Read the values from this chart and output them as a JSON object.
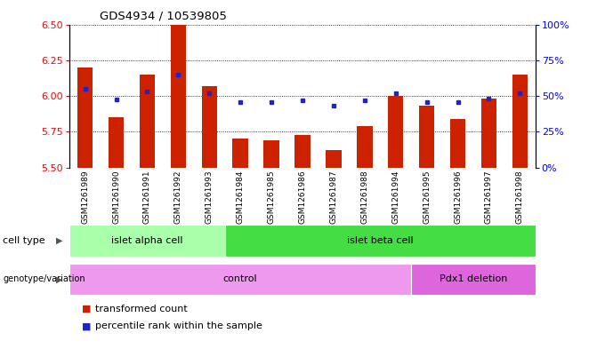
{
  "title": "GDS4934 / 10539805",
  "samples": [
    "GSM1261989",
    "GSM1261990",
    "GSM1261991",
    "GSM1261992",
    "GSM1261993",
    "GSM1261984",
    "GSM1261985",
    "GSM1261986",
    "GSM1261987",
    "GSM1261988",
    "GSM1261994",
    "GSM1261995",
    "GSM1261996",
    "GSM1261997",
    "GSM1261998"
  ],
  "bar_values": [
    6.2,
    5.85,
    6.15,
    6.5,
    6.07,
    5.7,
    5.69,
    5.73,
    5.62,
    5.79,
    6.0,
    5.93,
    5.84,
    5.98,
    6.15
  ],
  "dot_values_y": [
    6.05,
    5.975,
    6.03,
    6.15,
    6.02,
    5.96,
    5.96,
    5.97,
    5.93,
    5.97,
    6.02,
    5.96,
    5.96,
    5.98,
    6.02
  ],
  "ylim": [
    5.5,
    6.5
  ],
  "y_ticks_left": [
    5.5,
    5.75,
    6.0,
    6.25,
    6.5
  ],
  "right_pct_ticks": [
    0,
    25,
    50,
    75,
    100
  ],
  "right_pct_labels": [
    "0%",
    "25%",
    "50%",
    "75%",
    "100%"
  ],
  "bar_color": "#cc2200",
  "dot_color": "#2222cc",
  "bar_bottom": 5.5,
  "cell_type_groups": [
    {
      "label": "islet alpha cell",
      "start": 0,
      "end": 5,
      "color": "#aaffaa"
    },
    {
      "label": "islet beta cell",
      "start": 5,
      "end": 15,
      "color": "#44dd44"
    }
  ],
  "genotype_groups": [
    {
      "label": "control",
      "start": 0,
      "end": 11,
      "color": "#ee99ee"
    },
    {
      "label": "Pdx1 deletion",
      "start": 11,
      "end": 15,
      "color": "#dd66dd"
    }
  ],
  "legend_bar_label": "transformed count",
  "legend_dot_label": "percentile rank within the sample",
  "row_label_cell_type": "cell type",
  "row_label_genotype": "genotype/variation",
  "xtick_bg_color": "#cccccc",
  "chart_bg": "white"
}
